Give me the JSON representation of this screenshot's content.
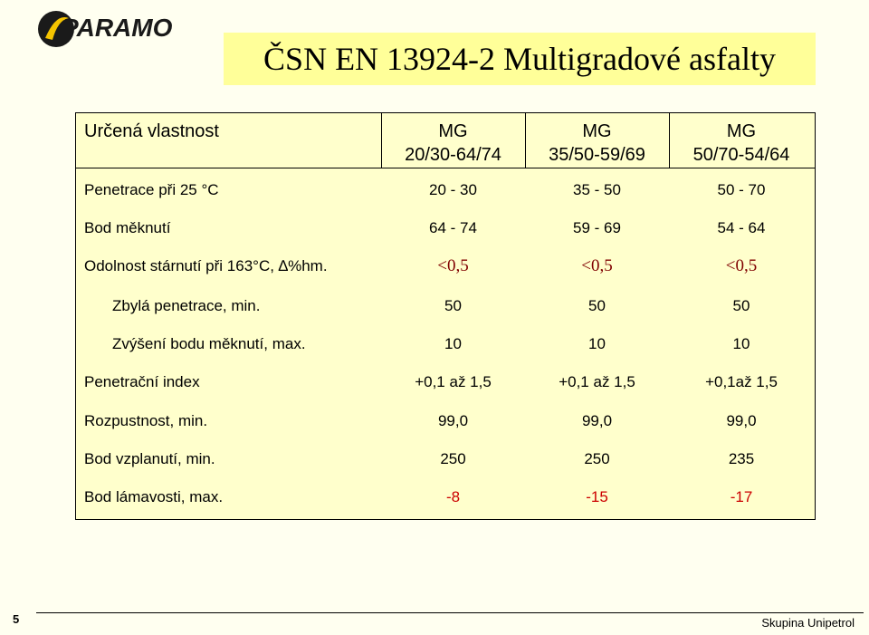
{
  "logo": {
    "text": "PARAMO"
  },
  "title": "ČSN EN 13924-2 Multigradové asfalty",
  "table": {
    "headers": {
      "property": "Určená vlastnost",
      "col1_line1": "MG",
      "col1_line2": "20/30-64/74",
      "col2_line1": "MG",
      "col2_line2": "35/50-59/69",
      "col3_line1": "MG",
      "col3_line2": "50/70-54/64"
    },
    "rows": [
      {
        "label": "Penetrace při 25 °C",
        "v1": "20 - 30",
        "v2": "35 - 50",
        "v3": "50 - 70"
      },
      {
        "label": "Bod měknutí",
        "v1": "64 - 74",
        "v2": "59 - 69",
        "v3": "54 - 64"
      },
      {
        "label": "Odolnost stárnutí při 163°C, ∆%hm.",
        "v1": "<0,5",
        "v2": "<0,5",
        "v3": "<0,5"
      },
      {
        "label": "Zbylá penetrace, min.",
        "v1": "50",
        "v2": "50",
        "v3": "50"
      },
      {
        "label": "Zvýšení bodu měknutí, max.",
        "v1": "10",
        "v2": "10",
        "v3": "10"
      },
      {
        "label": "Penetrační index",
        "v1": "+0,1 až 1,5",
        "v2": "+0,1 až 1,5",
        "v3": "+0,1až 1,5"
      },
      {
        "label": "Rozpustnost, min.",
        "v1": "99,0",
        "v2": "99,0",
        "v3": "99,0"
      },
      {
        "label": "Bod vzplanutí, min.",
        "v1": "250",
        "v2": "250",
        "v3": "235"
      },
      {
        "label": "Bod lámavosti, max.",
        "v1": "-8",
        "v2": "-15",
        "v3": "-17"
      }
    ]
  },
  "footer": {
    "page": "5",
    "company": "Skupina Unipetrol"
  },
  "colors": {
    "background": "#fffff0",
    "title_bar": "#ffff99",
    "table_bg": "#ffffcc",
    "accent_red": "#cc0000",
    "logo_yellow": "#f5c400"
  }
}
